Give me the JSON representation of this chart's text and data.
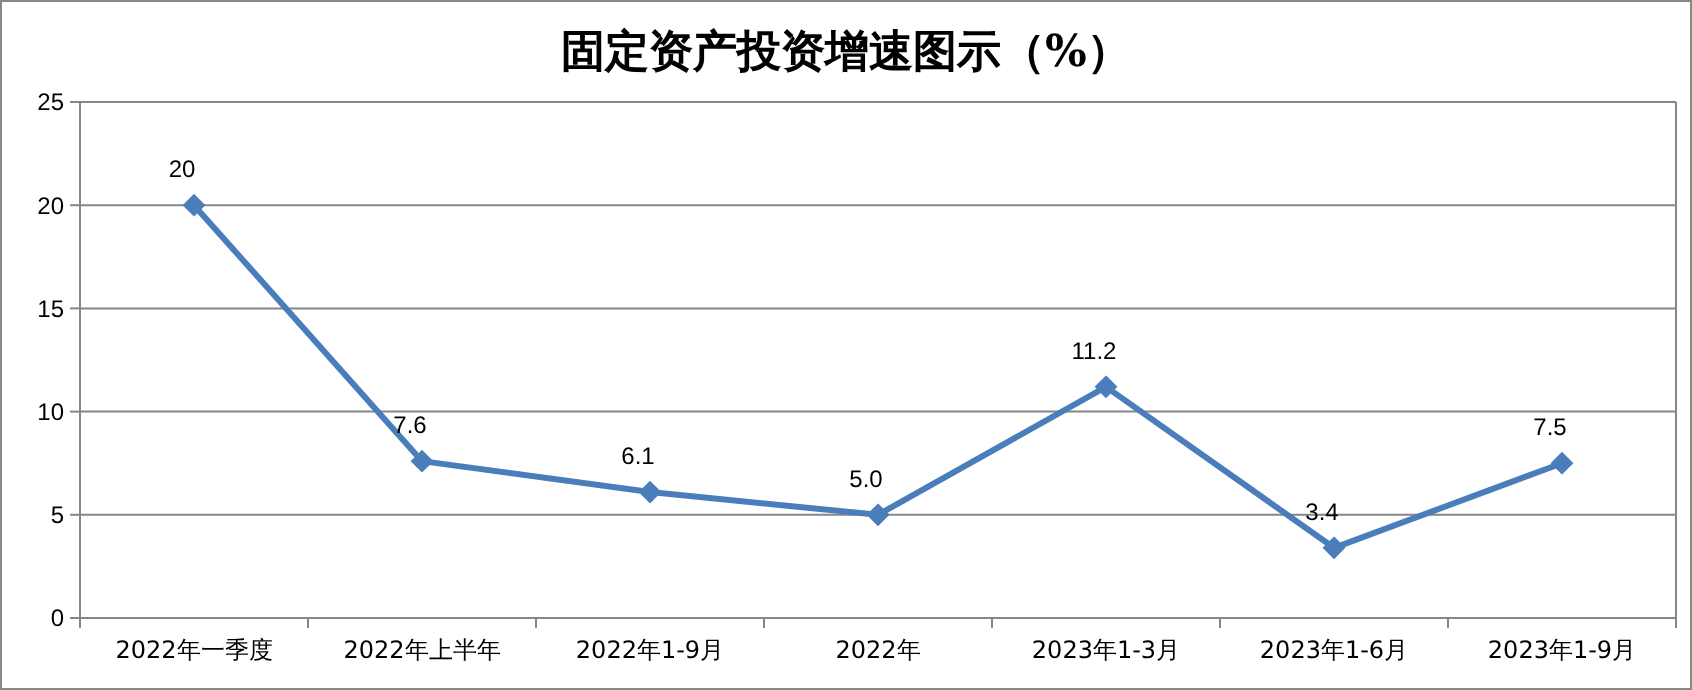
{
  "chart_data": {
    "type": "line",
    "title": "固定资产投资增速图示（%）",
    "categories": [
      "2022年一季度",
      "2022年上半年",
      "2022年1-9月",
      "2022年",
      "2023年1-3月",
      "2023年1-6月",
      "2023年1-9月"
    ],
    "series": [
      {
        "color": "#4a7ebb",
        "values": [
          20,
          7.6,
          6.1,
          5.0,
          11.2,
          3.4,
          7.5
        ],
        "value_labels": [
          "20",
          "7.6",
          "6.1",
          "5.0",
          "11.2",
          "3.4",
          "7.5"
        ]
      }
    ],
    "ylim": [
      0,
      25
    ],
    "yticks": [
      0,
      5,
      10,
      15,
      20,
      25
    ],
    "grid": "y",
    "marker": "diamond",
    "line_style": "solid"
  }
}
